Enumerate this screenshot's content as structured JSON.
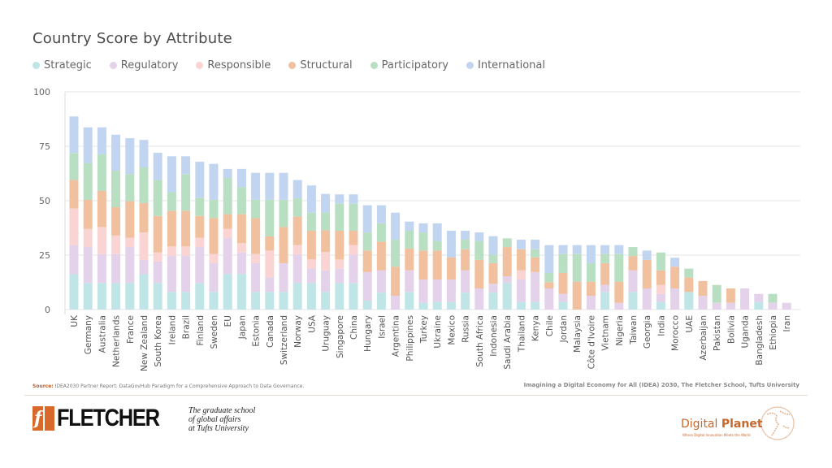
{
  "chart_data": {
    "type": "bar",
    "stacked": true,
    "title": "Country Score by Attribute",
    "xlabel": "",
    "ylabel": "",
    "ylim": [
      0,
      100
    ],
    "yticks": [
      0,
      25,
      50,
      75,
      100
    ],
    "grid": true,
    "legend_position": "top-left",
    "categories": [
      "UK",
      "Germany",
      "Australia",
      "Netherlands",
      "France",
      "New Zealand",
      "South Korea",
      "Ireland",
      "Brazil",
      "Finland",
      "Sweden",
      "EU",
      "Japan",
      "Estonia",
      "Canada",
      "Switzerland",
      "Norway",
      "USA",
      "Uruguay",
      "Singapore",
      "China",
      "Hungary",
      "Israel",
      "Argentina",
      "Philippines",
      "Turkey",
      "Ukraine",
      "Mexico",
      "Russia",
      "South Africa",
      "Indonesia",
      "Saudi Arabia",
      "Thailand",
      "Kenya",
      "Chile",
      "Jordan",
      "Malaysia",
      "Côte d'Ivoire",
      "Vietnam",
      "Nigeria",
      "Taiwan",
      "Georgia",
      "India",
      "Morocco",
      "UAE",
      "Azerbaijan",
      "Pakistan",
      "Bolivia",
      "Uganda",
      "Bangladesh",
      "Ethiopia",
      "Iran"
    ],
    "series": [
      {
        "name": "Strategic",
        "color": "#bfe5e6",
        "values": [
          16.2,
          12.2,
          12.2,
          12.2,
          12.2,
          16.2,
          12.2,
          8.1,
          8.1,
          12.2,
          8.1,
          16.3,
          16.3,
          8.1,
          8.1,
          8.1,
          12.2,
          12.2,
          8.1,
          12.2,
          12.2,
          4.1,
          7.8,
          0,
          8.1,
          3.1,
          3.5,
          3.5,
          7.8,
          0,
          7.8,
          12.2,
          3.5,
          3.5,
          0,
          3.5,
          0,
          0,
          8.1,
          0,
          8.1,
          0,
          3.5,
          0,
          8.1,
          0,
          0,
          0,
          0,
          3.5,
          0,
          0
        ]
      },
      {
        "name": "Regulatory",
        "color": "#e3d2ea",
        "values": [
          13.4,
          16.5,
          13.3,
          13.3,
          16.5,
          6.6,
          9.9,
          16.5,
          16.5,
          16.5,
          13.2,
          16.5,
          9.9,
          13.2,
          6.6,
          13.2,
          13.0,
          6.6,
          9.9,
          6.6,
          13.0,
          13.1,
          10.2,
          6.3,
          9.9,
          10.7,
          10.3,
          10.3,
          10.2,
          9.7,
          4.0,
          3.1,
          10.3,
          13.7,
          9.7,
          3.7,
          0,
          6.3,
          3.2,
          3.1,
          9.9,
          9.7,
          3.7,
          9.7,
          0,
          6.3,
          3.1,
          3.1,
          9.7,
          3.7,
          3.1,
          3.1
        ]
      },
      {
        "name": "Responsible",
        "color": "#fad4d2",
        "values": [
          16.8,
          8.4,
          12.4,
          8.5,
          4.3,
          12.6,
          4.1,
          4.4,
          4.4,
          4.3,
          4.2,
          4.3,
          4.3,
          4.2,
          12.4,
          0,
          4.4,
          4.2,
          8.4,
          4.2,
          4.4,
          0,
          0,
          0,
          0,
          0,
          0,
          0,
          0,
          0,
          0,
          0,
          4.2,
          0,
          0,
          0,
          0,
          0,
          0,
          0,
          0,
          0,
          4.1,
          0,
          0,
          0,
          0,
          0,
          0,
          0,
          0,
          0
        ]
      },
      {
        "name": "Structural",
        "color": "#f1c09f",
        "values": [
          13.1,
          13.3,
          16.6,
          13.0,
          16.8,
          13.5,
          16.8,
          16.4,
          16.4,
          10.0,
          16.5,
          6.7,
          13.3,
          16.5,
          6.5,
          16.6,
          13.1,
          13.2,
          10.0,
          13.2,
          6.6,
          9.9,
          13.2,
          13.4,
          10.0,
          13.3,
          13.3,
          10.2,
          9.7,
          13.1,
          9.5,
          13.4,
          9.7,
          6.8,
          2.9,
          9.6,
          12.8,
          6.5,
          10.0,
          9.7,
          6.6,
          13.1,
          6.7,
          10.0,
          6.6,
          6.8,
          0,
          6.6,
          0,
          0,
          0,
          0
        ]
      },
      {
        "name": "Participatory",
        "color": "#b9dfc3",
        "values": [
          12.4,
          16.8,
          16.8,
          16.8,
          12.4,
          16.4,
          16.5,
          8.5,
          16.8,
          8.4,
          8.4,
          16.6,
          12.4,
          8.4,
          16.8,
          12.5,
          8.4,
          8.3,
          8.3,
          12.4,
          12.4,
          8.3,
          8.4,
          12.4,
          8.2,
          8.3,
          4.4,
          0,
          4.4,
          8.7,
          3.9,
          4.0,
          0,
          3.7,
          4.2,
          8.7,
          12.7,
          8.5,
          4.2,
          12.7,
          4.1,
          0,
          8.2,
          0,
          4.1,
          0,
          8.2,
          0,
          0,
          0,
          4.1,
          0
        ]
      },
      {
        "name": "International",
        "color": "#c1d5f0",
        "values": [
          16.8,
          16.5,
          12.4,
          16.5,
          16.5,
          12.6,
          12.5,
          16.5,
          8.2,
          16.5,
          16.5,
          4.2,
          8.4,
          12.4,
          12.4,
          12.4,
          8.4,
          12.5,
          8.4,
          4.3,
          4.3,
          12.5,
          8.3,
          12.4,
          4.2,
          4.2,
          8.1,
          12.2,
          4.1,
          3.9,
          8.5,
          0,
          4.4,
          4.4,
          12.8,
          4.1,
          4.1,
          8.3,
          4.1,
          4.1,
          0,
          4.3,
          0,
          4.1,
          0,
          0,
          0,
          0,
          0,
          0,
          0,
          0
        ]
      }
    ]
  },
  "footer": {
    "source_label": "Source:",
    "source_text": " IDEA2030 Partner Report: DataGovHub Paradigm for a Comprehensive Approach to Data Governance.",
    "credit": "Imagining a Digital Economy for All (IDEA) 2030, The Fletcher School, Tufts University",
    "fletcher_logo": "FLETCHER",
    "fletcher_mark": "f",
    "tagline": [
      "The graduate school",
      "of global affairs",
      "at Tufts University"
    ],
    "digital_planet_1": "Digital ",
    "digital_planet_2": "Planet",
    "digital_planet_sub": "Where Digital Innovation Meets the World"
  }
}
